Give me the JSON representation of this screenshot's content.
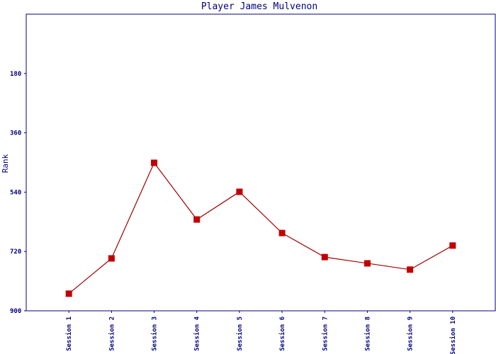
{
  "chart_data": {
    "type": "line",
    "title": "Player James Mulvenon",
    "y_label": "Rank",
    "categories": [
      "Session 1",
      "Session 2",
      "Session 3",
      "Session 4",
      "Session 5",
      "Session 6",
      "Session 7",
      "Session 8",
      "Session 9",
      "Session 10"
    ],
    "series": [
      {
        "name": "Rank",
        "color": "#a00000",
        "marker_color": "#c00000",
        "values": [
          848,
          741,
          451,
          623,
          539,
          664,
          737,
          756,
          775,
          702
        ]
      }
    ],
    "ylim": [
      0,
      900
    ],
    "y_inverted": true,
    "yticks": [
      180,
      360,
      540,
      720,
      900
    ]
  }
}
